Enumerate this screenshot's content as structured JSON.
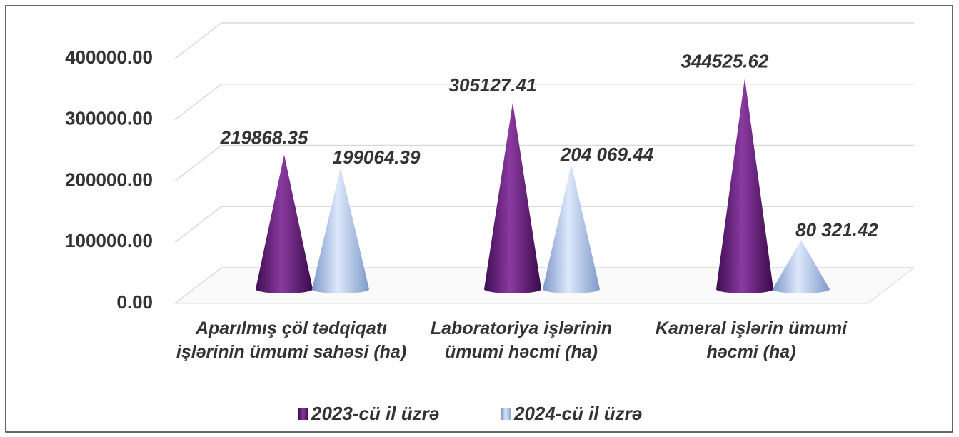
{
  "chart_data": {
    "type": "cone",
    "categories": [
      "Aparılmış çöl tədqiqatı işlərinin ümumi sahəsi (ha)",
      "Laboratoriya işlərinin ümumi həcmi (ha)",
      "Kameral işlərin ümumi həcmi (ha)"
    ],
    "series": [
      {
        "name": "2023-cü il üzrə",
        "color": "#5e1a72",
        "values": [
          219868.35,
          305127.41,
          344525.62
        ]
      },
      {
        "name": "2024-cü il üzrə",
        "color": "#9db8e8",
        "values": [
          199064.39,
          204069.44,
          80321.42
        ],
        "value_labels": [
          "199064.39",
          "204 069.44",
          "80 321.42"
        ]
      }
    ],
    "ylim": [
      0,
      400000
    ],
    "yticks": [
      {
        "value": 0,
        "label": "0.00"
      },
      {
        "value": 100000,
        "label": "100000.00"
      },
      {
        "value": 200000,
        "label": "200000.00"
      },
      {
        "value": 300000,
        "label": "300000.00"
      },
      {
        "value": 400000,
        "label": "400000.00"
      }
    ],
    "grid": true,
    "legend": "bottom"
  }
}
